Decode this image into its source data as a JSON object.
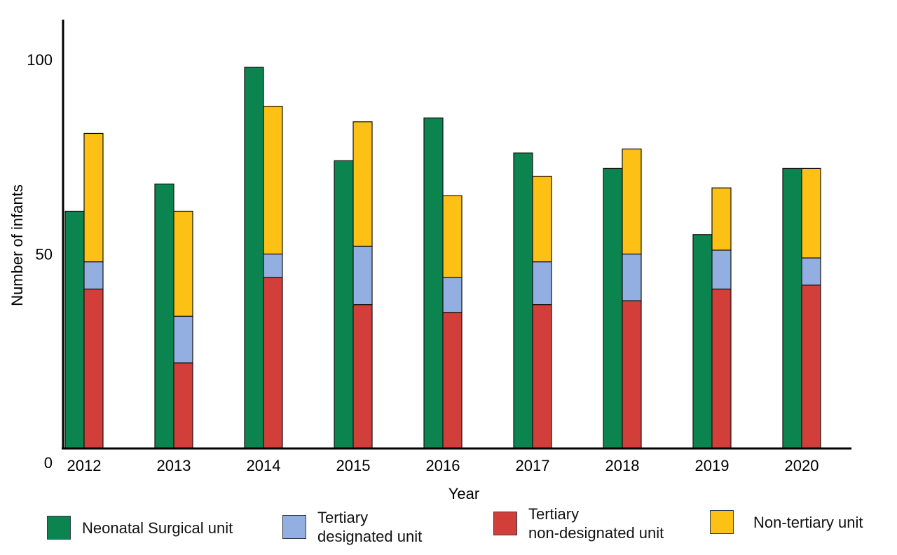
{
  "chart_data": {
    "type": "bar",
    "xlabel": "Year",
    "ylabel": "Number of infants",
    "ylim": [
      0,
      110
    ],
    "yticks": [
      0,
      50,
      100
    ],
    "categories": [
      "2012",
      "2013",
      "2014",
      "2015",
      "2016",
      "2017",
      "2018",
      "2019",
      "2020"
    ],
    "series": [
      {
        "name": "Neonatal Surgical unit",
        "color": "#0b8450",
        "stack": "a",
        "values": [
          61,
          68,
          98,
          74,
          85,
          76,
          72,
          55,
          72
        ]
      },
      {
        "name": "Tertiary non-designated unit",
        "color": "#d23f3b",
        "stack": "b",
        "values": [
          41,
          22,
          44,
          37,
          35,
          37,
          38,
          41,
          42
        ]
      },
      {
        "name": "Tertiary designated unit",
        "color": "#93aee0",
        "stack": "b",
        "values": [
          7,
          12,
          6,
          15,
          9,
          11,
          12,
          10,
          7
        ]
      },
      {
        "name": "Non-tertiary unit",
        "color": "#fdc015",
        "stack": "b",
        "values": [
          33,
          27,
          38,
          32,
          21,
          22,
          27,
          16,
          23
        ]
      }
    ],
    "legend": {
      "position": "bottom",
      "items": [
        {
          "label": "Neonatal Surgical unit",
          "color": "#0b8450"
        },
        {
          "label": "Tertiary\ndesignated unit",
          "color": "#93aee0"
        },
        {
          "label": "Tertiary\nnon-designated unit",
          "color": "#d23f3b"
        },
        {
          "label": "Non-tertiary unit",
          "color": "#fdc015"
        }
      ]
    },
    "grid": false
  }
}
